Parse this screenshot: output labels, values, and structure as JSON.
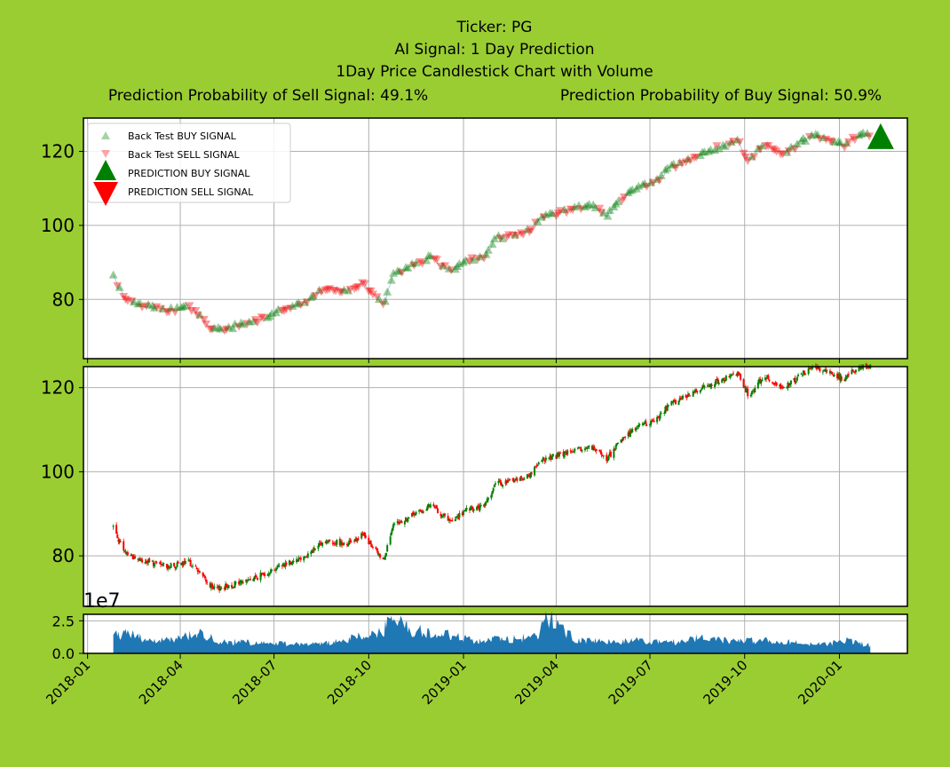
{
  "title": {
    "line1": "Ticker: PG",
    "line2": "AI Signal: 1 Day Prediction",
    "line3": "1Day Price Candlestick Chart with Volume",
    "sell_prob": "Prediction Probability of Sell Signal: 49.1%",
    "buy_prob": "Prediction Probability of Buy Signal: 50.9%"
  },
  "colors": {
    "background": "#9acd32",
    "buy": "#008000",
    "sell": "#ff0000",
    "volume": "#1f77b4",
    "grid": "#b0b0b0"
  },
  "chart_data": {
    "type": "candlestick",
    "x_range": [
      "2017-12-28",
      "2020-03-07"
    ],
    "x_ticks": [
      "2018-01",
      "2018-04",
      "2018-07",
      "2018-10",
      "2019-01",
      "2019-04",
      "2019-07",
      "2019-10",
      "2020-01"
    ],
    "price_ylim": [
      68,
      125
    ],
    "price_ticks": [
      80,
      100,
      120
    ],
    "signal_ylim": [
      64,
      129
    ],
    "volume_ylim": [
      0,
      3.0
    ],
    "volume_ticks": [
      "0.0",
      "2.5"
    ],
    "volume_offset_label": "1e7",
    "legend": {
      "placement": "upper-left",
      "entries": [
        "Back Test BUY SIGNAL",
        "Back Test SELL SIGNAL",
        "PREDICTION BUY SIGNAL",
        "PREDICTION SELL SIGNAL"
      ]
    },
    "price_path": [
      [
        "2018-01-26",
        87
      ],
      [
        "2018-02-05",
        81
      ],
      [
        "2018-02-20",
        79
      ],
      [
        "2018-03-10",
        78
      ],
      [
        "2018-03-25",
        77.5
      ],
      [
        "2018-04-10",
        78.5
      ],
      [
        "2018-04-20",
        76
      ],
      [
        "2018-05-03",
        72
      ],
      [
        "2018-05-20",
        73
      ],
      [
        "2018-06-15",
        75
      ],
      [
        "2018-07-10",
        78
      ],
      [
        "2018-08-01",
        80
      ],
      [
        "2018-08-20",
        83.5
      ],
      [
        "2018-09-10",
        83
      ],
      [
        "2018-09-25",
        85
      ],
      [
        "2018-10-05",
        82
      ],
      [
        "2018-10-15",
        79
      ],
      [
        "2018-10-25",
        87
      ],
      [
        "2018-11-15",
        90
      ],
      [
        "2018-12-01",
        92
      ],
      [
        "2018-12-20",
        88
      ],
      [
        "2019-01-05",
        91
      ],
      [
        "2019-01-20",
        91.5
      ],
      [
        "2019-02-01",
        97
      ],
      [
        "2019-02-20",
        98
      ],
      [
        "2019-03-05",
        99
      ],
      [
        "2019-03-20",
        103
      ],
      [
        "2019-04-05",
        104
      ],
      [
        "2019-04-20",
        105
      ],
      [
        "2019-05-05",
        106
      ],
      [
        "2019-05-20",
        103
      ],
      [
        "2019-06-05",
        108
      ],
      [
        "2019-06-20",
        111
      ],
      [
        "2019-07-05",
        112
      ],
      [
        "2019-07-20",
        116
      ],
      [
        "2019-08-05",
        118
      ],
      [
        "2019-08-20",
        120
      ],
      [
        "2019-09-10",
        122
      ],
      [
        "2019-09-25",
        123
      ],
      [
        "2019-10-05",
        118
      ],
      [
        "2019-10-20",
        123
      ],
      [
        "2019-11-05",
        120
      ],
      [
        "2019-11-20",
        122
      ],
      [
        "2019-12-05",
        125
      ],
      [
        "2019-12-20",
        124
      ],
      [
        "2020-01-05",
        122
      ],
      [
        "2020-01-20",
        125
      ],
      [
        "2020-01-31",
        125
      ]
    ],
    "volume_path": [
      [
        "2018-01-26",
        1.3
      ],
      [
        "2018-02-10",
        1.6
      ],
      [
        "2018-03-01",
        1.0
      ],
      [
        "2018-03-20",
        1.1
      ],
      [
        "2018-04-20",
        1.5
      ],
      [
        "2018-05-10",
        0.9
      ],
      [
        "2018-07-01",
        0.8
      ],
      [
        "2018-08-15",
        0.7
      ],
      [
        "2018-09-25",
        1.3
      ],
      [
        "2018-10-15",
        1.6
      ],
      [
        "2018-10-20",
        2.8
      ],
      [
        "2018-11-10",
        1.8
      ],
      [
        "2018-12-20",
        1.4
      ],
      [
        "2019-01-10",
        1.0
      ],
      [
        "2019-02-15",
        1.1
      ],
      [
        "2019-03-15",
        1.3
      ],
      [
        "2019-03-22",
        2.9
      ],
      [
        "2019-04-20",
        1.1
      ],
      [
        "2019-05-20",
        0.9
      ],
      [
        "2019-06-20",
        1.0
      ],
      [
        "2019-07-20",
        0.8
      ],
      [
        "2019-08-20",
        1.2
      ],
      [
        "2019-09-20",
        0.9
      ],
      [
        "2019-10-20",
        1.0
      ],
      [
        "2019-11-20",
        0.8
      ],
      [
        "2019-12-20",
        0.7
      ],
      [
        "2020-01-10",
        1.0
      ],
      [
        "2020-01-31",
        0.6
      ]
    ],
    "prediction": {
      "date": "2020-02-10",
      "price": 124,
      "signal": "buy"
    }
  }
}
